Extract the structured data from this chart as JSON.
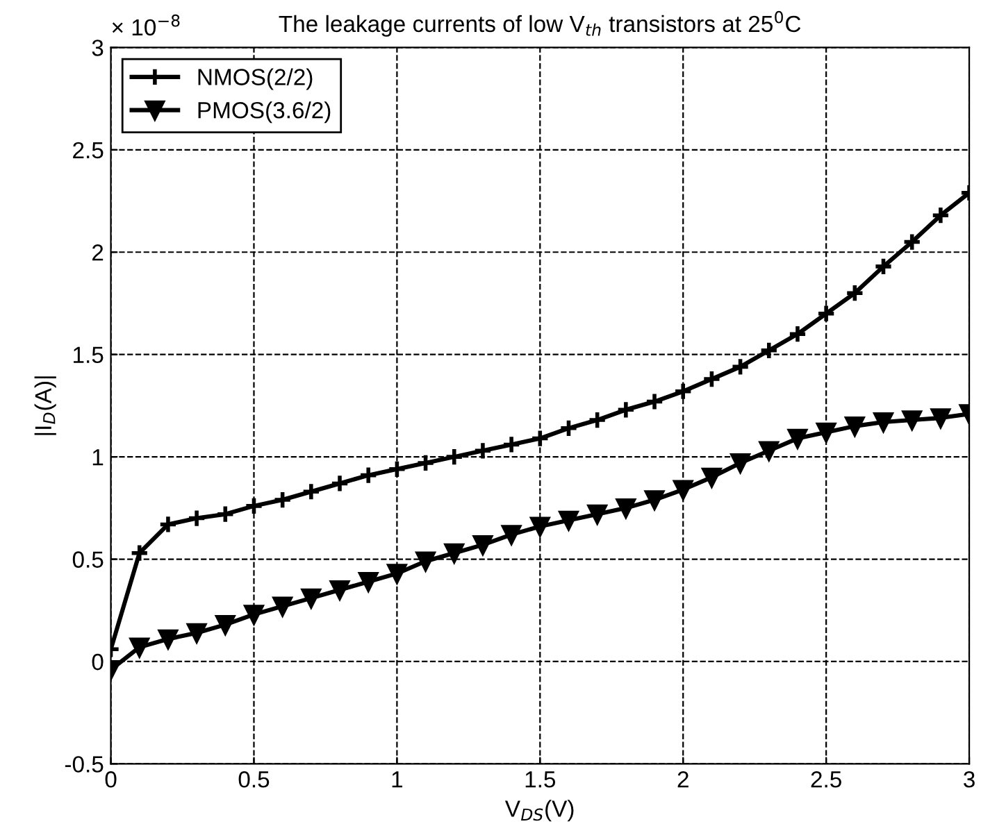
{
  "chart_data": {
    "type": "line",
    "title": "The leakage currents of low V$_{th}$ transistors at 25$^{0}$C",
    "xlabel": "V$_{DS}$(V)",
    "ylabel": "|I$_{D}$(A)|",
    "annotations": [
      "× 10$^{−8}$"
    ],
    "x": [
      0,
      0.1,
      0.2,
      0.3,
      0.4,
      0.5,
      0.6,
      0.7,
      0.8,
      0.9,
      1.0,
      1.1,
      1.2,
      1.3,
      1.4,
      1.5,
      1.6,
      1.7,
      1.8,
      1.9,
      2.0,
      2.1,
      2.2,
      2.3,
      2.4,
      2.5,
      2.6,
      2.7,
      2.8,
      2.9,
      3.0
    ],
    "series": [
      {
        "name": "NMOS(2/2)",
        "color": "#000000",
        "marker": "cross",
        "values": [
          0.06,
          0.53,
          0.67,
          0.7,
          0.72,
          0.76,
          0.79,
          0.83,
          0.87,
          0.91,
          0.94,
          0.97,
          1.0,
          1.03,
          1.06,
          1.09,
          1.14,
          1.18,
          1.23,
          1.27,
          1.32,
          1.38,
          1.44,
          1.52,
          1.6,
          1.7,
          1.8,
          1.93,
          2.05,
          2.18,
          2.29
        ]
      },
      {
        "name": "PMOS(3.6/2)",
        "color": "#000000",
        "marker": "triangle",
        "values": [
          -0.04,
          0.07,
          0.11,
          0.14,
          0.18,
          0.23,
          0.27,
          0.31,
          0.35,
          0.39,
          0.43,
          0.49,
          0.53,
          0.57,
          0.62,
          0.66,
          0.69,
          0.72,
          0.75,
          0.79,
          0.84,
          0.9,
          0.97,
          1.03,
          1.09,
          1.12,
          1.15,
          1.17,
          1.18,
          1.19,
          1.21
        ]
      }
    ],
    "xlim": [
      0,
      3
    ],
    "ylim": [
      -0.5,
      3
    ],
    "xticks": [
      0,
      0.5,
      1,
      1.5,
      2,
      2.5,
      3
    ],
    "yticks": [
      -0.5,
      0,
      0.5,
      1,
      1.5,
      2,
      2.5,
      3
    ],
    "grid": true,
    "legend": "top left",
    "line_style": "solid"
  }
}
